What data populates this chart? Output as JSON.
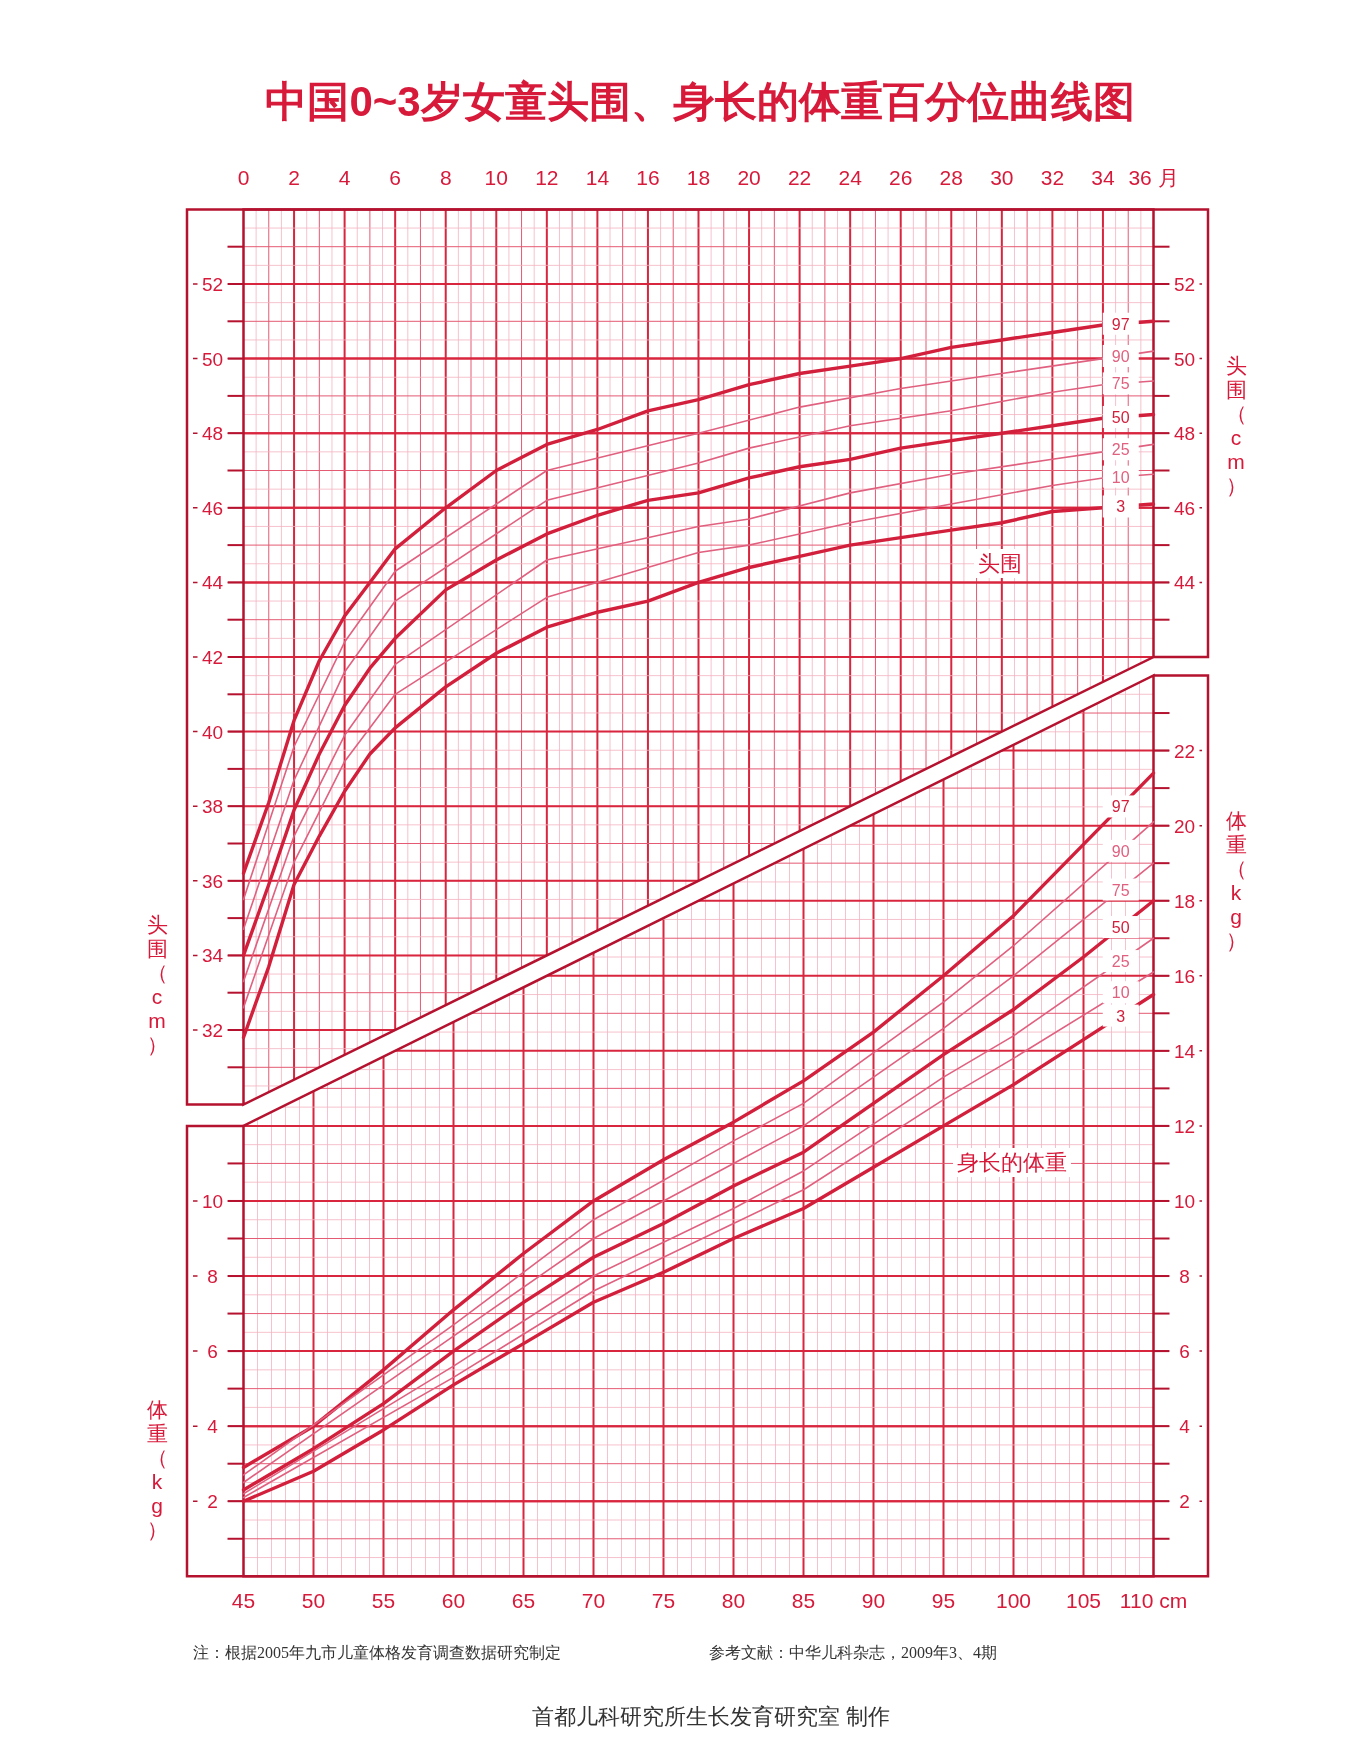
{
  "chart_data": [
    {
      "type": "line",
      "title": "中国0~3岁女童头围、身长的体重百分位曲线图",
      "ylabel": "头围（cm）",
      "y2label": "头围（cm）",
      "xlim": [
        0,
        36
      ],
      "xticks": [
        0,
        {
          "value": 0.5,
          "label": null
        },
        {
          "value": 1,
          "label": null
        },
        {
          "value": 1.5,
          "label": null
        },
        2,
        {
          "value": 2.5,
          "label": null
        },
        {
          "value": 3,
          "label": null
        },
        {
          "value": 3.5,
          "label": null
        },
        4,
        {
          "value": 4.5,
          "label": null
        },
        {
          "value": 5,
          "label": null
        },
        {
          "value": 5.5,
          "label": null
        },
        6,
        {
          "value": 6.5,
          "label": null
        },
        {
          "value": 7,
          "label": null
        },
        {
          "value": 7.5,
          "label": null
        },
        8,
        {
          "value": 8.5,
          "label": null
        },
        {
          "value": 9,
          "label": null
        },
        {
          "value": 9.5,
          "label": null
        },
        10,
        {
          "value": 10.5,
          "label": null
        },
        {
          "value": 11,
          "label": null
        },
        {
          "value": 11.5,
          "label": null
        },
        12,
        {
          "value": 12.5,
          "label": null
        },
        {
          "value": 13,
          "label": null
        },
        {
          "value": 13.5,
          "label": null
        },
        14,
        {
          "value": 14.5,
          "label": null
        },
        {
          "value": 15,
          "label": null
        },
        {
          "value": 15.5,
          "label": null
        },
        16,
        {
          "value": 16.5,
          "label": null
        },
        {
          "value": 17,
          "label": null
        },
        {
          "value": 17.5,
          "label": null
        },
        18,
        {
          "value": 18.5,
          "label": null
        },
        {
          "value": 19,
          "label": null
        },
        {
          "value": 19.5,
          "label": null
        },
        20,
        {
          "value": 20.5,
          "label": null
        },
        {
          "value": 21,
          "label": null
        },
        {
          "value": 21.5,
          "label": null
        },
        22,
        {
          "value": 22.5,
          "label": null
        },
        {
          "value": 23,
          "label": null
        },
        {
          "value": 23.5,
          "label": null
        },
        24,
        {
          "value": 24.5,
          "label": null
        },
        {
          "value": 25,
          "label": null
        },
        {
          "value": 25.5,
          "label": null
        },
        26,
        {
          "value": 26.5,
          "label": null
        },
        {
          "value": 27,
          "label": null
        },
        {
          "value": 27.5,
          "label": null
        },
        28,
        {
          "value": 28.5,
          "label": null
        },
        {
          "value": 29,
          "label": null
        },
        {
          "value": 29.5,
          "label": null
        },
        30,
        {
          "value": 30.5,
          "label": null
        },
        {
          "value": 31,
          "label": null
        },
        {
          "value": 31.5,
          "label": null
        },
        32,
        {
          "value": 32.5,
          "label": null
        },
        {
          "value": 33,
          "label": null
        },
        {
          "value": 33.5,
          "label": null
        },
        34,
        {
          "value": 34.5,
          "label": null
        },
        {
          "value": 35,
          "label": null
        },
        {
          "value": 35.5,
          "label": null
        },
        {
          "value": 36,
          "label": "36 月"
        }
      ],
      "ylim": [
        30,
        54
      ],
      "yticks": [
        {
          "value": 30.5,
          "label": null
        },
        {
          "value": 31,
          "label": null
        },
        {
          "value": 31.5,
          "label": null
        },
        {
          "value": 32,
          "label": null
        },
        {
          "value": 32.5,
          "label": null
        },
        {
          "value": 33,
          "label": null
        },
        {
          "value": 33.5,
          "label": null
        },
        {
          "value": 34,
          "label": null
        },
        {
          "value": 34.5,
          "label": null
        },
        {
          "value": 35,
          "label": null
        },
        {
          "value": 35.5,
          "label": null
        },
        {
          "value": 36,
          "label": null
        },
        {
          "value": 36.5,
          "label": null
        },
        {
          "value": 37,
          "label": null
        },
        {
          "value": 37.5,
          "label": null
        },
        {
          "value": 38,
          "label": null
        },
        {
          "value": 38.5,
          "label": null
        },
        {
          "value": 39,
          "label": null
        },
        {
          "value": 39.5,
          "label": null
        },
        {
          "value": 40,
          "label": null
        },
        {
          "value": 40.5,
          "label": null
        },
        {
          "value": 41,
          "label": null
        },
        {
          "value": 41.5,
          "label": null
        },
        {
          "value": 42,
          "label": null
        },
        {
          "value": 42.5,
          "label": null
        },
        {
          "value": 43,
          "label": null
        },
        {
          "value": 43.5,
          "label": null
        },
        44,
        {
          "value": 44.5,
          "label": null
        },
        {
          "value": 45,
          "label": null
        },
        {
          "value": 45.5,
          "label": null
        },
        46,
        {
          "value": 46.5,
          "label": null
        },
        {
          "value": 47,
          "label": null
        },
        {
          "value": 47.5,
          "label": null
        },
        48,
        {
          "value": 48.5,
          "label": null
        },
        {
          "value": 49,
          "label": null
        },
        {
          "value": 49.5,
          "label": null
        },
        50,
        {
          "value": 50.5,
          "label": null
        },
        {
          "value": 51,
          "label": null
        },
        {
          "value": 51.5,
          "label": null
        },
        52,
        {
          "value": 52.5,
          "label": null
        },
        {
          "value": 53,
          "label": null
        },
        {
          "value": 53.5,
          "label": null
        }
      ],
      "y2lim": [
        30,
        54
      ],
      "y2ticks": [
        32,
        34,
        36,
        38,
        40,
        42,
        44,
        46,
        48,
        50,
        52
      ],
      "grid": true,
      "annotations": [
        "头围"
      ],
      "legend": "right",
      "series": [
        {
          "name": "97",
          "color": "#d21f3c",
          "x": [
            0,
            1,
            2,
            3,
            4,
            5,
            6,
            8,
            10,
            12,
            14,
            16,
            18,
            20,
            22,
            24,
            26,
            28,
            30,
            32,
            34,
            36
          ],
          "values": [
            36.2,
            38.1,
            40.3,
            41.9,
            43.1,
            44.0,
            44.9,
            46.0,
            47.0,
            47.7,
            48.1,
            48.6,
            48.9,
            49.3,
            49.6,
            49.8,
            50.0,
            50.3,
            50.5,
            50.7,
            50.9,
            51.0
          ]
        },
        {
          "name": "90",
          "color": "#e0607f",
          "x": [
            0,
            2,
            4,
            6,
            12,
            18,
            22,
            26,
            30,
            34,
            36
          ],
          "values": [
            35.5,
            39.6,
            42.4,
            44.3,
            47.0,
            48.0,
            48.7,
            49.2,
            49.6,
            50.0,
            50.2
          ]
        },
        {
          "name": "75",
          "color": "#e0607f",
          "x": [
            0,
            2,
            4,
            6,
            12,
            18,
            20,
            24,
            28,
            32,
            34,
            36
          ],
          "values": [
            34.7,
            38.7,
            41.6,
            43.5,
            46.2,
            47.2,
            47.6,
            48.2,
            48.6,
            49.1,
            49.3,
            49.4
          ]
        },
        {
          "name": "50",
          "color": "#d21f3c",
          "x": [
            0,
            1,
            2,
            3,
            4,
            5,
            6,
            8,
            10,
            12,
            14,
            16,
            18,
            20,
            22,
            24,
            26,
            28,
            30,
            32,
            34,
            36
          ],
          "values": [
            34.0,
            35.9,
            37.9,
            39.4,
            40.7,
            41.7,
            42.5,
            43.8,
            44.6,
            45.3,
            45.8,
            46.2,
            46.4,
            46.8,
            47.1,
            47.3,
            47.6,
            47.8,
            48.0,
            48.2,
            48.4,
            48.5
          ]
        },
        {
          "name": "25",
          "color": "#e0607f",
          "x": [
            0,
            2,
            4,
            6,
            12,
            18,
            20,
            24,
            28,
            32,
            34,
            36
          ],
          "values": [
            33.3,
            37.2,
            39.9,
            41.8,
            44.6,
            45.5,
            45.7,
            46.4,
            46.9,
            47.3,
            47.5,
            47.7
          ]
        },
        {
          "name": "10",
          "color": "#e0607f",
          "x": [
            0,
            2,
            4,
            6,
            12,
            18,
            20,
            24,
            28,
            32,
            34,
            36
          ],
          "values": [
            32.6,
            36.5,
            39.2,
            41.0,
            43.6,
            44.8,
            45.0,
            45.6,
            46.1,
            46.6,
            46.8,
            46.9
          ]
        },
        {
          "name": "3",
          "color": "#d21f3c",
          "x": [
            0,
            1,
            2,
            3,
            4,
            5,
            6,
            8,
            10,
            12,
            14,
            16,
            18,
            20,
            22,
            24,
            26,
            28,
            30,
            32,
            34,
            36
          ],
          "values": [
            31.8,
            33.7,
            35.9,
            37.2,
            38.4,
            39.4,
            40.1,
            41.2,
            42.1,
            42.8,
            43.2,
            43.5,
            44.0,
            44.4,
            44.7,
            45.0,
            45.2,
            45.4,
            45.6,
            45.9,
            46.0,
            46.1
          ]
        }
      ]
    },
    {
      "type": "line",
      "ylabel": "体重（kg）",
      "y2label": "体重（kg）",
      "xlim": [
        45,
        110
      ],
      "xticks": [
        45,
        {
          "value": 46,
          "label": null
        },
        {
          "value": 47,
          "label": null
        },
        {
          "value": 48,
          "label": null
        },
        {
          "value": 49,
          "label": null
        },
        50,
        {
          "value": 51,
          "label": null
        },
        {
          "value": 52,
          "label": null
        },
        {
          "value": 53,
          "label": null
        },
        {
          "value": 54,
          "label": null
        },
        55,
        {
          "value": 56,
          "label": null
        },
        {
          "value": 57,
          "label": null
        },
        {
          "value": 58,
          "label": null
        },
        {
          "value": 59,
          "label": null
        },
        60,
        {
          "value": 61,
          "label": null
        },
        {
          "value": 62,
          "label": null
        },
        {
          "value": 63,
          "label": null
        },
        {
          "value": 64,
          "label": null
        },
        65,
        {
          "value": 66,
          "label": null
        },
        {
          "value": 67,
          "label": null
        },
        {
          "value": 68,
          "label": null
        },
        {
          "value": 69,
          "label": null
        },
        70,
        {
          "value": 71,
          "label": null
        },
        {
          "value": 72,
          "label": null
        },
        {
          "value": 73,
          "label": null
        },
        {
          "value": 74,
          "label": null
        },
        75,
        {
          "value": 76,
          "label": null
        },
        {
          "value": 77,
          "label": null
        },
        {
          "value": 78,
          "label": null
        },
        {
          "value": 79,
          "label": null
        },
        80,
        {
          "value": 81,
          "label": null
        },
        {
          "value": 82,
          "label": null
        },
        {
          "value": 83,
          "label": null
        },
        {
          "value": 84,
          "label": null
        },
        85,
        {
          "value": 86,
          "label": null
        },
        {
          "value": 87,
          "label": null
        },
        {
          "value": 88,
          "label": null
        },
        {
          "value": 89,
          "label": null
        },
        90,
        {
          "value": 91,
          "label": null
        },
        {
          "value": 92,
          "label": null
        },
        {
          "value": 93,
          "label": null
        },
        {
          "value": 94,
          "label": null
        },
        95,
        {
          "value": 96,
          "label": null
        },
        {
          "value": 97,
          "label": null
        },
        {
          "value": 98,
          "label": null
        },
        {
          "value": 99,
          "label": null
        },
        100,
        {
          "value": 101,
          "label": null
        },
        {
          "value": 102,
          "label": null
        },
        {
          "value": 103,
          "label": null
        },
        {
          "value": 104,
          "label": null
        },
        105,
        {
          "value": 106,
          "label": null
        },
        {
          "value": 107,
          "label": null
        },
        {
          "value": 108,
          "label": null
        },
        {
          "value": 109,
          "label": null
        },
        {
          "value": 110,
          "label": "110 cm"
        }
      ],
      "ylim": [
        0,
        24
      ],
      "yticks": [
        {
          "value": 0.5,
          "label": null
        },
        {
          "value": 1,
          "label": null
        },
        {
          "value": 1.5,
          "label": null
        },
        2,
        {
          "value": 2.5,
          "label": null
        },
        {
          "value": 3,
          "label": null
        },
        {
          "value": 3.5,
          "label": null
        },
        4,
        {
          "value": 4.5,
          "label": null
        },
        {
          "value": 5,
          "label": null
        },
        {
          "value": 5.5,
          "label": null
        },
        6,
        {
          "value": 6.5,
          "label": null
        },
        {
          "value": 7,
          "label": null
        },
        {
          "value": 7.5,
          "label": null
        },
        8,
        {
          "value": 8.5,
          "label": null
        },
        {
          "value": 9,
          "label": null
        },
        {
          "value": 9.5,
          "label": null
        },
        10,
        {
          "value": 10.5,
          "label": null
        },
        {
          "value": 11,
          "label": null
        },
        {
          "value": 11.5,
          "label": null
        },
        12,
        {
          "value": 12.5,
          "label": null
        },
        {
          "value": 13,
          "label": null
        },
        {
          "value": 13.5,
          "label": null
        },
        14,
        {
          "value": 14.5,
          "label": null
        },
        {
          "value": 15,
          "label": null
        },
        {
          "value": 15.5,
          "label": null
        },
        16,
        {
          "value": 16.5,
          "label": null
        },
        {
          "value": 17,
          "label": null
        },
        {
          "value": 17.5,
          "label": null
        },
        18,
        {
          "value": 18.5,
          "label": null
        },
        {
          "value": 19,
          "label": null
        },
        {
          "value": 19.5,
          "label": null
        },
        20,
        {
          "value": 20.5,
          "label": null
        },
        {
          "value": 21,
          "label": null
        },
        {
          "value": 21.5,
          "label": null
        },
        22,
        {
          "value": 22.5,
          "label": null
        },
        {
          "value": 23,
          "label": null
        },
        {
          "value": 23.5,
          "label": null
        }
      ],
      "y2lim": [
        0,
        24
      ],
      "y2ticks": [
        2,
        4,
        6,
        8,
        10
      ],
      "grid": true,
      "legend": "right",
      "annotations": [
        "身长的体重",
        "注：根据2005年九市儿童体格发育调查数据研究制定",
        "参考文献：中华儿科杂志，2009年3、4期",
        "首都儿科研究所生长发育研究室 制作"
      ],
      "series": [
        {
          "name": "97",
          "color": "#d21f3c",
          "x": [
            45,
            50,
            55,
            60,
            65,
            70,
            75,
            80,
            85,
            90,
            95,
            100,
            105,
            110
          ],
          "values": [
            2.9,
            4.0,
            5.5,
            7.1,
            8.6,
            10.0,
            11.1,
            12.1,
            13.2,
            14.5,
            16.0,
            17.6,
            19.5,
            21.4
          ]
        },
        {
          "name": "90",
          "color": "#e0607f",
          "x": [
            45,
            60,
            70,
            80,
            85,
            95,
            100,
            110
          ],
          "values": [
            2.7,
            6.7,
            9.5,
            11.6,
            12.6,
            15.3,
            16.8,
            20.1
          ]
        },
        {
          "name": "75",
          "color": "#e0607f",
          "x": [
            45,
            60,
            70,
            80,
            85,
            95,
            100,
            110
          ],
          "values": [
            2.5,
            6.4,
            9.0,
            11.0,
            12.0,
            14.6,
            16.0,
            19.0
          ]
        },
        {
          "name": "50",
          "color": "#d21f3c",
          "x": [
            45,
            50,
            55,
            60,
            65,
            70,
            75,
            80,
            85,
            90,
            95,
            100,
            105,
            110
          ],
          "values": [
            2.3,
            3.4,
            4.6,
            6.0,
            7.3,
            8.5,
            9.4,
            10.4,
            11.3,
            12.6,
            13.9,
            15.1,
            16.5,
            18.0
          ]
        },
        {
          "name": "25",
          "color": "#e0607f",
          "x": [
            45,
            60,
            70,
            80,
            85,
            95,
            100,
            110
          ],
          "values": [
            2.2,
            5.6,
            8.0,
            9.8,
            10.8,
            13.3,
            14.4,
            17.0
          ]
        },
        {
          "name": "10",
          "color": "#e0607f",
          "x": [
            45,
            60,
            70,
            80,
            85,
            95,
            100,
            110
          ],
          "values": [
            2.1,
            5.3,
            7.6,
            9.4,
            10.3,
            12.7,
            13.8,
            16.1
          ]
        },
        {
          "name": "3",
          "color": "#d21f3c",
          "x": [
            45,
            50,
            55,
            60,
            65,
            70,
            75,
            80,
            85,
            90,
            95,
            100,
            105,
            110
          ],
          "values": [
            2.0,
            2.8,
            3.9,
            5.1,
            6.2,
            7.3,
            8.1,
            9.0,
            9.8,
            10.9,
            12.0,
            13.1,
            14.3,
            15.5
          ]
        }
      ]
    }
  ]
}
